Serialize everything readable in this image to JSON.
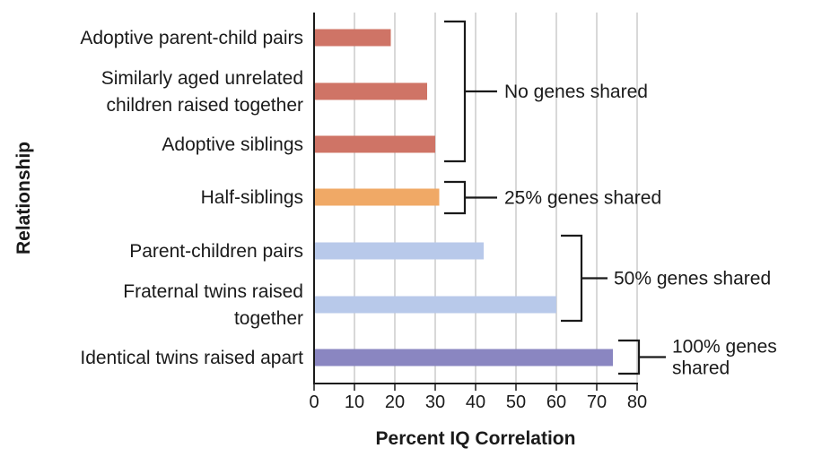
{
  "chart_data": {
    "type": "bar",
    "orientation": "horizontal",
    "xlabel": "Percent IQ Correlation",
    "ylabel": "Relationship",
    "xlim": [
      0,
      80
    ],
    "xticks": [
      0,
      10,
      20,
      30,
      40,
      50,
      60,
      70,
      80
    ],
    "grid": "vertical",
    "categories": [
      [
        "Adoptive parent-child pairs"
      ],
      [
        "Similarly aged unrelated",
        "children raised together"
      ],
      [
        "Adoptive siblings"
      ],
      [
        "Half-siblings"
      ],
      [
        "Parent-children pairs"
      ],
      [
        "Fraternal twins raised",
        "together"
      ],
      [
        "Identical twins raised apart"
      ]
    ],
    "values": [
      19,
      28,
      30,
      31,
      42,
      60,
      74
    ],
    "bar_colors": [
      "#cf7466",
      "#cf7466",
      "#cf7466",
      "#f0a966",
      "#b8c9ea",
      "#b8c9ea",
      "#8a86c1"
    ],
    "groups": [
      {
        "label": [
          "No genes shared"
        ],
        "members": [
          0,
          1,
          2
        ]
      },
      {
        "label": [
          "25% genes shared"
        ],
        "members": [
          3
        ]
      },
      {
        "label": [
          "50% genes shared"
        ],
        "members": [
          4,
          5
        ]
      },
      {
        "label": [
          "100% genes",
          "shared"
        ],
        "members": [
          6
        ]
      }
    ]
  }
}
